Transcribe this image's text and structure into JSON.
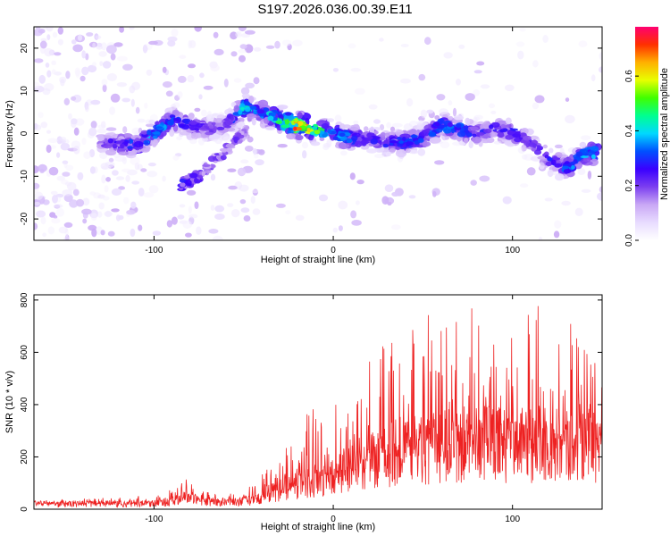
{
  "title": "S197.2026.036.00.39.E11",
  "chart_data": [
    {
      "type": "heatmap",
      "name": "spectrogram",
      "xlabel": "Height of straight line (km)",
      "ylabel": "Frequency (Hz)",
      "xlim": [
        -167,
        150
      ],
      "ylim": [
        -25,
        25
      ],
      "xticks": [
        -100,
        0,
        100
      ],
      "yticks": [
        -20,
        -10,
        0,
        10,
        20
      ],
      "colorbar": {
        "label": "Normalized spectral amplitude",
        "range": [
          0,
          0.78
        ],
        "ticks": [
          0.0,
          0.2,
          0.4,
          0.6
        ],
        "stops": [
          "#ffffff",
          "#e8dcff",
          "#c9a8f5",
          "#7c3ff0",
          "#3a00ff",
          "#0050ff",
          "#00d8ff",
          "#00ff90",
          "#40ff00",
          "#e8ff00",
          "#ffb000",
          "#ff3000",
          "#ff0070"
        ]
      },
      "ridge": {
        "x": [
          -130,
          -110,
          -100,
          -90,
          -80,
          -70,
          -60,
          -50,
          -40,
          -30,
          -20,
          -10,
          0,
          10,
          20,
          30,
          40,
          50,
          60,
          70,
          80,
          90,
          100,
          110,
          120,
          130,
          140,
          148
        ],
        "freq": [
          -2,
          -3,
          0,
          3,
          2,
          1,
          2,
          6,
          5,
          3,
          2,
          1,
          0,
          -1,
          -1,
          -2,
          -2,
          -1,
          2,
          1,
          0,
          1,
          0,
          -2,
          -6,
          -8,
          -5,
          -4
        ],
        "peak": [
          0.2,
          0.3,
          0.35,
          0.3,
          0.25,
          0.2,
          0.2,
          0.4,
          0.3,
          0.45,
          0.7,
          0.5,
          0.35,
          0.3,
          0.25,
          0.25,
          0.3,
          0.3,
          0.3,
          0.3,
          0.25,
          0.25,
          0.25,
          0.2,
          0.25,
          0.3,
          0.35,
          0.4
        ]
      },
      "branch": {
        "x": [
          -85,
          -75,
          -65,
          -55,
          -48
        ],
        "freq": [
          -12,
          -10,
          -6,
          -2,
          1
        ],
        "peak": [
          0.25,
          0.2,
          0.2,
          0.2,
          0.15
        ]
      }
    },
    {
      "type": "line",
      "name": "snr",
      "xlabel": "Height of straight line (km)",
      "ylabel": "SNR (10 * v/v)",
      "xlim": [
        -167,
        150
      ],
      "ylim": [
        0,
        820
      ],
      "xticks": [
        -100,
        0,
        100
      ],
      "yticks": [
        0,
        200,
        400,
        600,
        800
      ],
      "color": "#ee2222",
      "envelope": {
        "x": [
          -167,
          -120,
          -100,
          -90,
          -82,
          -75,
          -60,
          -50,
          -40,
          -30,
          -20,
          -10,
          0,
          10,
          20,
          30,
          40,
          50,
          60,
          70,
          80,
          90,
          100,
          110,
          120,
          130,
          140,
          150
        ],
        "baseline": [
          20,
          20,
          22,
          28,
          45,
          30,
          25,
          30,
          40,
          70,
          90,
          110,
          120,
          150,
          180,
          200,
          230,
          230,
          240,
          240,
          250,
          250,
          240,
          250,
          250,
          240,
          250,
          240
        ],
        "peak": [
          35,
          45,
          55,
          80,
          115,
          70,
          55,
          70,
          140,
          200,
          330,
          400,
          420,
          480,
          600,
          700,
          800,
          750,
          760,
          790,
          760,
          740,
          700,
          800,
          780,
          760,
          620,
          560
        ]
      }
    }
  ]
}
